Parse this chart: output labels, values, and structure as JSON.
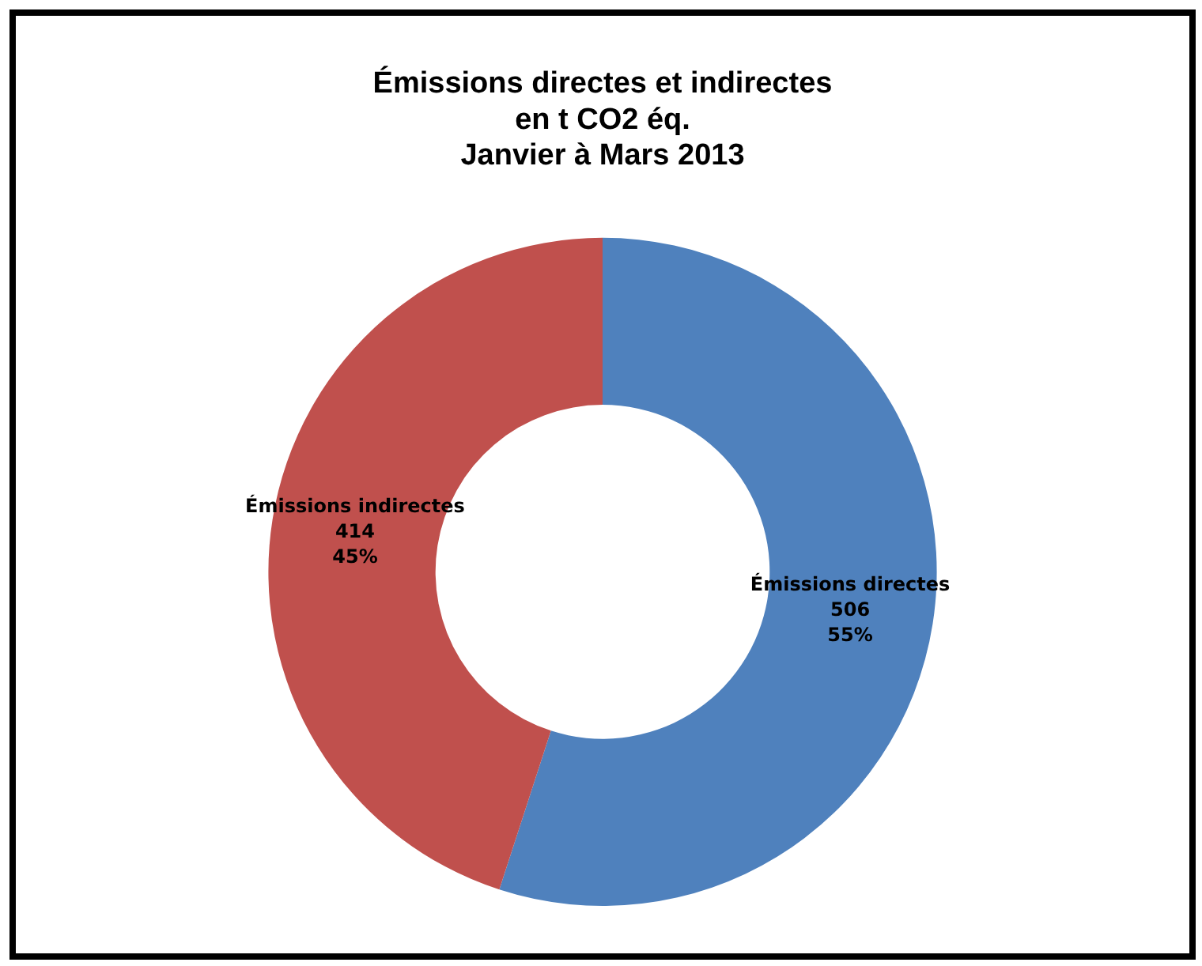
{
  "chart_data": {
    "type": "donut",
    "title": [
      "Émissions directes et indirectes",
      "en t CO2 éq.",
      "Janvier à Mars 2013"
    ],
    "categories": [
      "Émissions directes",
      "Émissions indirectes"
    ],
    "values": [
      506,
      414
    ],
    "colors": [
      "#4f81bd",
      "#c0504d"
    ],
    "value_labels": [
      "506\n55%",
      "414\n45%"
    ],
    "legend": false
  }
}
